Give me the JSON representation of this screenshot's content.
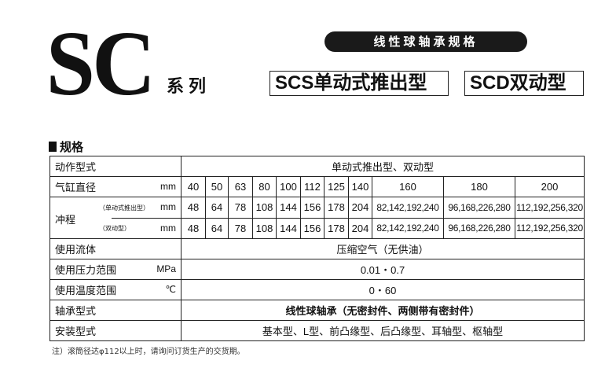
{
  "header": {
    "logo": "SC",
    "series": "系列",
    "pill": "线性球轴承规格",
    "box1": "SCS单动式推出型",
    "box2": "SCD双动型"
  },
  "section_title": "规格",
  "table": {
    "action_type": {
      "label": "动作型式",
      "value": "单动式推出型、双动型"
    },
    "bore": {
      "label": "气缸直径",
      "unit": "mm",
      "values": [
        "40",
        "50",
        "63",
        "80",
        "100",
        "112",
        "125",
        "140",
        "160",
        "180",
        "200"
      ]
    },
    "stroke": {
      "label": "冲程",
      "unit": "mm",
      "single": {
        "sub": "（单动式推出型）",
        "values": [
          "48",
          "64",
          "78",
          "108",
          "144",
          "156",
          "178",
          "204",
          "82,142,192,240",
          "96,168,226,280",
          "112,192,256,320"
        ]
      },
      "double": {
        "sub": "（双动型）",
        "values": [
          "48",
          "64",
          "78",
          "108",
          "144",
          "156",
          "178",
          "204",
          "82,142,192,240",
          "96,168,226,280",
          "112,192,256,320"
        ]
      }
    },
    "fluid": {
      "label": "使用流体",
      "value": "压缩空气（无供油）"
    },
    "pressure": {
      "label": "使用压力范围",
      "unit": "MPa",
      "value": "0.01・0.7"
    },
    "temperature": {
      "label": "使用温度范围",
      "unit": "℃",
      "value": "0・60"
    },
    "bearing": {
      "label": "轴承型式",
      "value": "线性球轴承（无密封件、两侧带有密封件）"
    },
    "mounting": {
      "label": "安装型式",
      "value": "基本型、L型、前凸缘型、后凸缘型、耳轴型、枢轴型"
    }
  },
  "note": "注）滚筒径达φ112以上时，请询问订货生产的交货期。"
}
